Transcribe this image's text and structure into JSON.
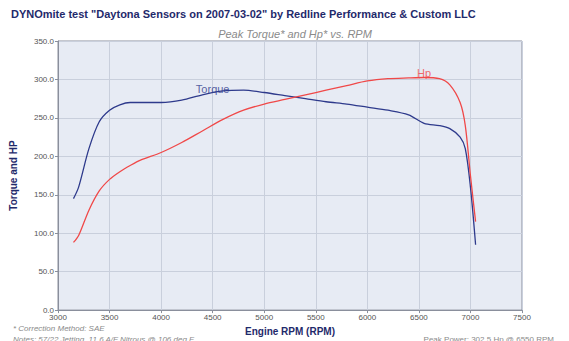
{
  "chart_data": {
    "type": "line",
    "title": "DYNOmite test \"Daytona Sensors on 2007-03-02\" by Redline Performance & Custom LLC",
    "subtitle": "Peak Torque* and Hp* vs. RPM",
    "x_label": "Engine RPM (RPM)",
    "y_label": "Torque and HP",
    "notes": [
      "* Correction Method: SAE",
      "Notes: 57/22 Jetting  11.6 A/F Nitrous @ 106 deg F"
    ],
    "footer": "Peak Power: 302.5 Hp @ 6550 RPM",
    "annotations": [
      {
        "text": "Torque",
        "x": 4500,
        "y": 288
      },
      {
        "text": "Hp",
        "x": 6550,
        "y": 308
      }
    ],
    "x": [
      3150,
      3200,
      3300,
      3400,
      3500,
      3600,
      3700,
      3800,
      4000,
      4200,
      4400,
      4600,
      4800,
      5000,
      5200,
      5400,
      5600,
      5800,
      6000,
      6200,
      6400,
      6550,
      6700,
      6800,
      6900,
      6950,
      7000,
      7050
    ],
    "series": [
      {
        "name": "Torque",
        "color": "#2e3a8c",
        "values": [
          145,
          160,
          210,
          245,
          260,
          267,
          270,
          270,
          270,
          273,
          280,
          285,
          286,
          283,
          279,
          275,
          271,
          268,
          264,
          260,
          254,
          243,
          240,
          236,
          225,
          210,
          160,
          85
        ]
      },
      {
        "name": "Hp",
        "color": "#f04848",
        "values": [
          88,
          97,
          130,
          155,
          170,
          180,
          188,
          195,
          205,
          218,
          233,
          248,
          260,
          268,
          274,
          280,
          286,
          292,
          298,
          301,
          302,
          302.5,
          301,
          293,
          270,
          240,
          175,
          115
        ]
      }
    ],
    "xlim": [
      3000,
      7500
    ],
    "xticks": [
      3000,
      3500,
      4000,
      4500,
      5000,
      5500,
      6000,
      6500,
      7000,
      7500
    ],
    "ylim": [
      0,
      350
    ],
    "yticks": [
      {
        "value": 0,
        "label": "0.0"
      },
      {
        "value": 50,
        "label": "50.0"
      },
      {
        "value": 100,
        "label": "100.0"
      },
      {
        "value": 150,
        "label": "150.0"
      },
      {
        "value": 200,
        "label": "200.0"
      },
      {
        "value": 250,
        "label": "250.0"
      },
      {
        "value": 300,
        "label": "300.0"
      },
      {
        "value": 350,
        "label": "350.0"
      }
    ],
    "grid": true
  }
}
